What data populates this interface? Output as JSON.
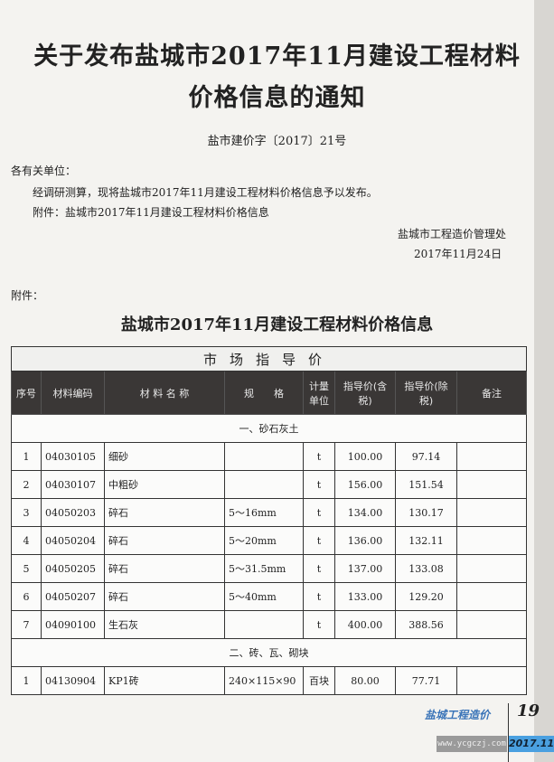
{
  "title_line1": "关于发布盐城市2017年11月建设工程材料",
  "title_line2": "价格信息的通知",
  "doc_no": "盐市建价字〔2017〕21号",
  "salutation": "各有关单位：",
  "body": "经调研测算，现将盐城市2017年11月建设工程材料价格信息予以发布。",
  "attachment_note": "附件：盐城市2017年11月建设工程材料价格信息",
  "issuer": "盐城市工程造价管理处",
  "date": "2017年11月24日",
  "attachment_label": "附件：",
  "table_title": "盐城市2017年11月建设工程材料价格信息",
  "table": {
    "banner": "市场指导价",
    "headers": [
      "序号",
      "材料编码",
      "材 料 名 称",
      "规　　格",
      "计量单位",
      "指导价(含税)",
      "指导价(除税)",
      "备注"
    ],
    "sections": [
      {
        "name": "一、砂石灰土",
        "rows": [
          [
            "1",
            "04030105",
            "细砂",
            "",
            "t",
            "100.00",
            "97.14",
            ""
          ],
          [
            "2",
            "04030107",
            "中粗砂",
            "",
            "t",
            "156.00",
            "151.54",
            ""
          ],
          [
            "3",
            "04050203",
            "碎石",
            "5～16mm",
            "t",
            "134.00",
            "130.17",
            ""
          ],
          [
            "4",
            "04050204",
            "碎石",
            "5～20mm",
            "t",
            "136.00",
            "132.11",
            ""
          ],
          [
            "5",
            "04050205",
            "碎石",
            "5～31.5mm",
            "t",
            "137.00",
            "133.08",
            ""
          ],
          [
            "6",
            "04050207",
            "碎石",
            "5～40mm",
            "t",
            "133.00",
            "129.20",
            ""
          ],
          [
            "7",
            "04090100",
            "生石灰",
            "",
            "t",
            "400.00",
            "388.56",
            ""
          ]
        ]
      },
      {
        "name": "二、砖、瓦、砌块",
        "rows": [
          [
            "1",
            "04130904",
            "KP1砖",
            "240×115×90",
            "百块",
            "80.00",
            "77.71",
            ""
          ]
        ]
      }
    ]
  },
  "footer": {
    "brand": "盐城工程造价",
    "page": "19",
    "url": "www.ycgczj.com",
    "issue": "2017.11"
  }
}
